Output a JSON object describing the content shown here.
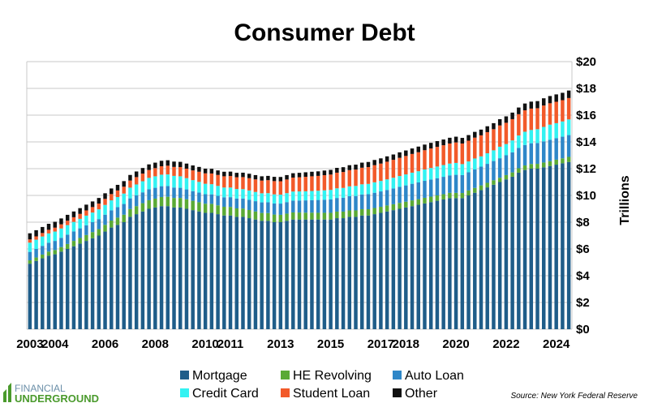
{
  "chart_data": {
    "type": "bar",
    "stacked": true,
    "title": "Consumer Debt",
    "xlabel": "",
    "ylabel": "Trillions",
    "ylim": [
      0,
      20
    ],
    "yticks": [
      "$0",
      "$2",
      "$4",
      "$6",
      "$8",
      "$10",
      "$12",
      "$14",
      "$16",
      "$18",
      "$20"
    ],
    "yticks_values": [
      0,
      2,
      4,
      6,
      8,
      10,
      12,
      14,
      16,
      18,
      20
    ],
    "xticks": [
      "2003",
      "2004",
      "2006",
      "2008",
      "2010",
      "2011",
      "2013",
      "2015",
      "2017",
      "2018",
      "2020",
      "2022",
      "2024"
    ],
    "x_start_quarter": "2003 Q1",
    "grid": true,
    "legend_position": "bottom",
    "source": "Source: New York Federal Reserve",
    "logo": {
      "line1": "FINANCIAL",
      "line2": "UNDERGROUND"
    },
    "categories": [
      "2003 Q1",
      "2003 Q2",
      "2003 Q3",
      "2003 Q4",
      "2004 Q1",
      "2004 Q2",
      "2004 Q3",
      "2004 Q4",
      "2005 Q1",
      "2005 Q2",
      "2005 Q3",
      "2005 Q4",
      "2006 Q1",
      "2006 Q2",
      "2006 Q3",
      "2006 Q4",
      "2007 Q1",
      "2007 Q2",
      "2007 Q3",
      "2007 Q4",
      "2008 Q1",
      "2008 Q2",
      "2008 Q3",
      "2008 Q4",
      "2009 Q1",
      "2009 Q2",
      "2009 Q3",
      "2009 Q4",
      "2010 Q1",
      "2010 Q2",
      "2010 Q3",
      "2010 Q4",
      "2011 Q1",
      "2011 Q2",
      "2011 Q3",
      "2011 Q4",
      "2012 Q1",
      "2012 Q2",
      "2012 Q3",
      "2012 Q4",
      "2013 Q1",
      "2013 Q2",
      "2013 Q3",
      "2013 Q4",
      "2014 Q1",
      "2014 Q2",
      "2014 Q3",
      "2014 Q4",
      "2015 Q1",
      "2015 Q2",
      "2015 Q3",
      "2015 Q4",
      "2016 Q1",
      "2016 Q2",
      "2016 Q3",
      "2016 Q4",
      "2017 Q1",
      "2017 Q2",
      "2017 Q3",
      "2017 Q4",
      "2018 Q1",
      "2018 Q2",
      "2018 Q3",
      "2018 Q4",
      "2019 Q1",
      "2019 Q2",
      "2019 Q3",
      "2019 Q4",
      "2020 Q1",
      "2020 Q2",
      "2020 Q3",
      "2020 Q4",
      "2021 Q1",
      "2021 Q2",
      "2021 Q3",
      "2021 Q4",
      "2022 Q1",
      "2022 Q2",
      "2022 Q3",
      "2022 Q4",
      "2023 Q1",
      "2023 Q2",
      "2023 Q3",
      "2023 Q4",
      "2024 Q1",
      "2024 Q2",
      "2024 Q3"
    ],
    "series": [
      {
        "name": "Mortgage",
        "color": "#1f5d89",
        "values": [
          4.9,
          5.1,
          5.3,
          5.5,
          5.6,
          5.8,
          6.0,
          6.2,
          6.4,
          6.6,
          6.8,
          7.0,
          7.3,
          7.6,
          7.8,
          8.0,
          8.4,
          8.6,
          8.8,
          9.0,
          9.1,
          9.2,
          9.2,
          9.1,
          9.1,
          9.0,
          8.9,
          8.8,
          8.7,
          8.7,
          8.6,
          8.5,
          8.5,
          8.4,
          8.4,
          8.3,
          8.2,
          8.1,
          8.1,
          8.0,
          8.0,
          8.1,
          8.2,
          8.2,
          8.2,
          8.2,
          8.2,
          8.2,
          8.2,
          8.3,
          8.3,
          8.4,
          8.4,
          8.5,
          8.5,
          8.6,
          8.7,
          8.8,
          8.9,
          9.0,
          9.1,
          9.2,
          9.3,
          9.4,
          9.5,
          9.6,
          9.7,
          9.8,
          9.8,
          9.8,
          10.0,
          10.2,
          10.4,
          10.6,
          10.8,
          11.0,
          11.2,
          11.4,
          11.7,
          11.9,
          12.0,
          12.0,
          12.1,
          12.2,
          12.3,
          12.4,
          12.5
        ]
      },
      {
        "name": "HE Revolving",
        "color": "#5aaa35",
        "values": [
          0.25,
          0.26,
          0.28,
          0.3,
          0.32,
          0.34,
          0.37,
          0.4,
          0.42,
          0.44,
          0.46,
          0.48,
          0.5,
          0.52,
          0.54,
          0.56,
          0.58,
          0.6,
          0.62,
          0.64,
          0.66,
          0.68,
          0.7,
          0.71,
          0.71,
          0.71,
          0.7,
          0.69,
          0.68,
          0.67,
          0.66,
          0.65,
          0.64,
          0.63,
          0.62,
          0.61,
          0.6,
          0.59,
          0.58,
          0.57,
          0.55,
          0.54,
          0.53,
          0.52,
          0.51,
          0.51,
          0.5,
          0.5,
          0.5,
          0.49,
          0.49,
          0.48,
          0.48,
          0.47,
          0.47,
          0.46,
          0.45,
          0.45,
          0.44,
          0.44,
          0.43,
          0.43,
          0.42,
          0.42,
          0.41,
          0.4,
          0.39,
          0.39,
          0.39,
          0.38,
          0.37,
          0.36,
          0.35,
          0.34,
          0.33,
          0.32,
          0.32,
          0.32,
          0.33,
          0.34,
          0.35,
          0.36,
          0.36,
          0.36,
          0.37,
          0.37,
          0.38
        ]
      },
      {
        "name": "Auto Loan",
        "color": "#2e87c8",
        "values": [
          0.63,
          0.64,
          0.65,
          0.66,
          0.68,
          0.69,
          0.7,
          0.71,
          0.72,
          0.73,
          0.74,
          0.75,
          0.76,
          0.77,
          0.78,
          0.8,
          0.8,
          0.81,
          0.81,
          0.82,
          0.81,
          0.81,
          0.8,
          0.78,
          0.76,
          0.74,
          0.72,
          0.72,
          0.71,
          0.71,
          0.71,
          0.71,
          0.73,
          0.74,
          0.75,
          0.76,
          0.77,
          0.79,
          0.81,
          0.83,
          0.84,
          0.86,
          0.88,
          0.9,
          0.92,
          0.94,
          0.96,
          0.98,
          1.0,
          1.02,
          1.04,
          1.06,
          1.08,
          1.1,
          1.12,
          1.14,
          1.15,
          1.16,
          1.18,
          1.2,
          1.22,
          1.24,
          1.25,
          1.27,
          1.28,
          1.29,
          1.3,
          1.31,
          1.35,
          1.34,
          1.36,
          1.38,
          1.4,
          1.42,
          1.44,
          1.46,
          1.48,
          1.5,
          1.52,
          1.53,
          1.55,
          1.56,
          1.58,
          1.6,
          1.61,
          1.62,
          1.63
        ]
      },
      {
        "name": "Credit Card",
        "color": "#33f2f2",
        "values": [
          0.69,
          0.69,
          0.7,
          0.7,
          0.7,
          0.7,
          0.71,
          0.71,
          0.71,
          0.72,
          0.72,
          0.73,
          0.73,
          0.74,
          0.76,
          0.78,
          0.8,
          0.81,
          0.83,
          0.85,
          0.86,
          0.86,
          0.87,
          0.87,
          0.86,
          0.84,
          0.82,
          0.8,
          0.78,
          0.76,
          0.74,
          0.73,
          0.72,
          0.71,
          0.7,
          0.7,
          0.69,
          0.68,
          0.68,
          0.68,
          0.67,
          0.67,
          0.68,
          0.68,
          0.68,
          0.68,
          0.69,
          0.7,
          0.71,
          0.72,
          0.73,
          0.74,
          0.75,
          0.76,
          0.77,
          0.78,
          0.78,
          0.79,
          0.8,
          0.81,
          0.82,
          0.83,
          0.84,
          0.85,
          0.86,
          0.87,
          0.88,
          0.88,
          0.89,
          0.82,
          0.81,
          0.82,
          0.77,
          0.79,
          0.8,
          0.86,
          0.84,
          0.89,
          0.93,
          0.99,
          0.99,
          1.03,
          1.08,
          1.13,
          1.12,
          1.14,
          1.17
        ]
      },
      {
        "name": "Student Loan",
        "color": "#f25a2a",
        "values": [
          0.24,
          0.25,
          0.26,
          0.27,
          0.29,
          0.31,
          0.33,
          0.35,
          0.37,
          0.39,
          0.41,
          0.43,
          0.45,
          0.47,
          0.49,
          0.51,
          0.53,
          0.55,
          0.57,
          0.59,
          0.61,
          0.63,
          0.65,
          0.67,
          0.69,
          0.71,
          0.73,
          0.76,
          0.78,
          0.8,
          0.82,
          0.84,
          0.86,
          0.88,
          0.9,
          0.92,
          0.94,
          0.95,
          0.97,
          0.99,
          1.0,
          1.02,
          1.04,
          1.06,
          1.08,
          1.1,
          1.11,
          1.13,
          1.15,
          1.17,
          1.19,
          1.21,
          1.22,
          1.24,
          1.26,
          1.28,
          1.3,
          1.32,
          1.34,
          1.36,
          1.38,
          1.4,
          1.42,
          1.44,
          1.46,
          1.47,
          1.48,
          1.5,
          1.53,
          1.54,
          1.55,
          1.56,
          1.57,
          1.58,
          1.58,
          1.59,
          1.59,
          1.59,
          1.59,
          1.6,
          1.6,
          1.57,
          1.6,
          1.6,
          1.6,
          1.59,
          1.6
        ]
      },
      {
        "name": "Other",
        "color": "#111111",
        "values": [
          0.46,
          0.46,
          0.45,
          0.45,
          0.44,
          0.44,
          0.44,
          0.43,
          0.43,
          0.43,
          0.42,
          0.42,
          0.42,
          0.42,
          0.42,
          0.42,
          0.42,
          0.42,
          0.42,
          0.42,
          0.41,
          0.41,
          0.41,
          0.4,
          0.39,
          0.38,
          0.37,
          0.36,
          0.35,
          0.35,
          0.34,
          0.34,
          0.33,
          0.33,
          0.33,
          0.33,
          0.32,
          0.32,
          0.32,
          0.32,
          0.32,
          0.33,
          0.33,
          0.33,
          0.34,
          0.34,
          0.34,
          0.35,
          0.35,
          0.36,
          0.36,
          0.37,
          0.37,
          0.38,
          0.38,
          0.39,
          0.39,
          0.4,
          0.4,
          0.41,
          0.41,
          0.41,
          0.42,
          0.42,
          0.42,
          0.43,
          0.43,
          0.43,
          0.43,
          0.42,
          0.42,
          0.43,
          0.43,
          0.44,
          0.45,
          0.47,
          0.48,
          0.49,
          0.5,
          0.51,
          0.52,
          0.53,
          0.54,
          0.54,
          0.55,
          0.55,
          0.56
        ]
      }
    ]
  }
}
